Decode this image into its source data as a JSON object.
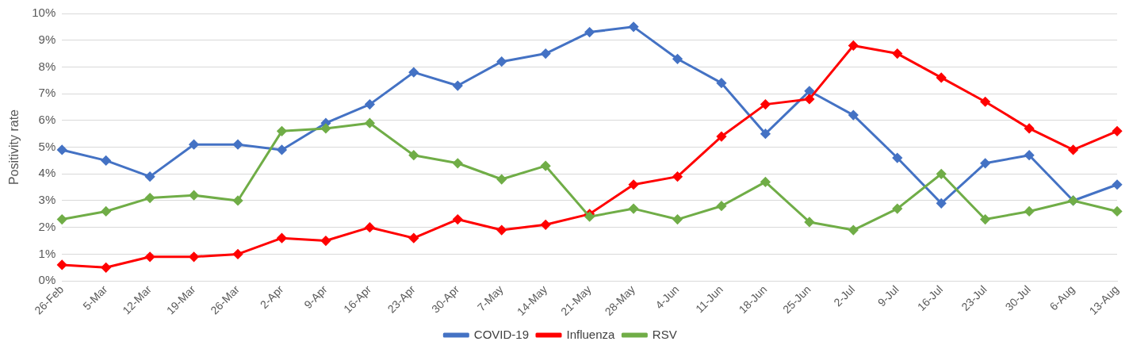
{
  "chart_data": {
    "type": "line",
    "ylabel": "Positivity rate",
    "categories": [
      "26-Feb",
      "5-Mar",
      "12-Mar",
      "19-Mar",
      "26-Mar",
      "2-Apr",
      "9-Apr",
      "16-Apr",
      "23-Apr",
      "30-Apr",
      "7-May",
      "14-May",
      "21-May",
      "28-May",
      "4-Jun",
      "11-Jun",
      "18-Jun",
      "25-Jun",
      "2-Jul",
      "9-Jul",
      "16-Jul",
      "23-Jul",
      "30-Jul",
      "6-Aug",
      "13-Aug"
    ],
    "series": [
      {
        "name": "COVID-19",
        "color": "#4472c4",
        "values": [
          4.9,
          4.5,
          3.9,
          5.1,
          5.1,
          4.9,
          5.9,
          6.6,
          7.8,
          7.3,
          8.2,
          8.5,
          9.3,
          9.5,
          8.3,
          7.4,
          5.5,
          7.1,
          6.2,
          4.6,
          2.9,
          4.4,
          4.7,
          3.0,
          3.6
        ]
      },
      {
        "name": "Influenza",
        "color": "#ff0000",
        "values": [
          0.6,
          0.5,
          0.9,
          0.9,
          1.0,
          1.6,
          1.5,
          2.0,
          1.6,
          2.3,
          1.9,
          2.1,
          2.5,
          3.6,
          3.9,
          5.4,
          6.6,
          6.8,
          8.8,
          8.5,
          7.6,
          6.7,
          5.7,
          4.9,
          5.6
        ]
      },
      {
        "name": "RSV",
        "color": "#70ad47",
        "values": [
          2.3,
          2.6,
          3.1,
          3.2,
          3.0,
          5.6,
          5.7,
          5.9,
          4.7,
          4.4,
          3.8,
          4.3,
          2.4,
          2.7,
          2.3,
          2.8,
          3.7,
          2.2,
          1.9,
          2.7,
          4.0,
          2.3,
          2.6,
          3.0,
          2.6
        ]
      }
    ],
    "ylim": [
      0,
      10
    ],
    "yticks": [
      {
        "value": 0,
        "label": "0%"
      },
      {
        "value": 1,
        "label": "1%"
      },
      {
        "value": 2,
        "label": "2%"
      },
      {
        "value": 3,
        "label": "3%"
      },
      {
        "value": 4,
        "label": "4%"
      },
      {
        "value": 5,
        "label": "5%"
      },
      {
        "value": 6,
        "label": "6%"
      },
      {
        "value": 7,
        "label": "7%"
      },
      {
        "value": 8,
        "label": "8%"
      },
      {
        "value": 9,
        "label": "9%"
      },
      {
        "value": 10,
        "label": "10%"
      }
    ],
    "grid": "y",
    "legend": "bottom",
    "marker": "diamond",
    "line_style": "solid"
  }
}
